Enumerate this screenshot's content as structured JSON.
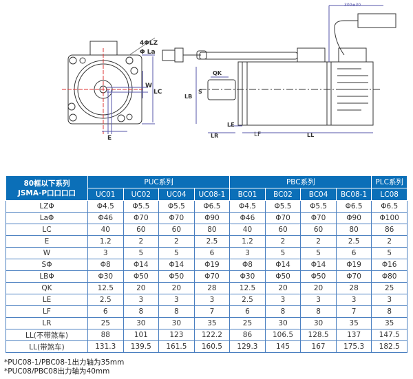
{
  "drawing": {
    "labels": {
      "lz": "4ΦLZ",
      "la": "Φ La",
      "w": "W",
      "lc": "LC",
      "e": "E",
      "qk": "QK",
      "lb": "LB",
      "s": "S",
      "le": "LE",
      "lr": "LR",
      "lf": "LF",
      "ll": "LL",
      "cable": "300±30"
    }
  },
  "table": {
    "corner": [
      "80框以下系列",
      "JSMA-P口口口口"
    ],
    "groups": [
      "PUC系列",
      "PBC系列",
      "PLC系列"
    ],
    "models": [
      "UC01",
      "UC02",
      "UC04",
      "UC08-1",
      "BC01",
      "BC02",
      "BC04",
      "BC08-1",
      "LC08"
    ],
    "rows": [
      {
        "label": "LZΦ",
        "values": [
          "Φ4.5",
          "Φ5.5",
          "Φ5.5",
          "Φ6.5",
          "Φ4.5",
          "Φ5.5",
          "Φ5.5",
          "Φ6.5",
          "Φ6.5"
        ]
      },
      {
        "label": "LaΦ",
        "values": [
          "Φ46",
          "Φ70",
          "Φ70",
          "Φ90",
          "Φ46",
          "Φ70",
          "Φ70",
          "Φ90",
          "Φ100"
        ]
      },
      {
        "label": "LC",
        "values": [
          "40",
          "60",
          "60",
          "80",
          "40",
          "60",
          "60",
          "80",
          "86"
        ]
      },
      {
        "label": "E",
        "values": [
          "1.2",
          "2",
          "2",
          "2.5",
          "1.2",
          "2",
          "2",
          "2.5",
          "2"
        ]
      },
      {
        "label": "W",
        "values": [
          "3",
          "5",
          "5",
          "6",
          "3",
          "5",
          "5",
          "6",
          "5"
        ]
      },
      {
        "label": "SΦ",
        "values": [
          "Φ8",
          "Φ14",
          "Φ14",
          "Φ19",
          "Φ8",
          "Φ14",
          "Φ14",
          "Φ19",
          "Φ16"
        ]
      },
      {
        "label": "LBΦ",
        "values": [
          "Φ30",
          "Φ50",
          "Φ50",
          "Φ70",
          "Φ30",
          "Φ50",
          "Φ50",
          "Φ70",
          "Φ80"
        ]
      },
      {
        "label": "QK",
        "values": [
          "12.5",
          "20",
          "20",
          "28",
          "12.5",
          "20",
          "20",
          "28",
          "25"
        ]
      },
      {
        "label": "LE",
        "values": [
          "2.5",
          "3",
          "3",
          "3",
          "2.5",
          "3",
          "3",
          "3",
          "3"
        ]
      },
      {
        "label": "LF",
        "values": [
          "6",
          "8",
          "8",
          "7",
          "6",
          "8",
          "8",
          "7",
          "8"
        ]
      },
      {
        "label": "LR",
        "values": [
          "25",
          "30",
          "30",
          "35",
          "25",
          "30",
          "30",
          "35",
          "35"
        ]
      },
      {
        "label": "LL(不带煞车)",
        "values": [
          "88",
          "101",
          "123",
          "122.2",
          "86",
          "106.5",
          "128.5",
          "137",
          "147.5"
        ]
      },
      {
        "label": "LL(带煞车)",
        "values": [
          "131.3",
          "139.5",
          "161.5",
          "160.5",
          "129.3",
          "145",
          "167",
          "175.3",
          "182.5"
        ]
      }
    ]
  },
  "notes": [
    "*PUC08-1/PBC08-1出力轴为35mm",
    "*PUC08/PBC08出力轴为40mm"
  ]
}
